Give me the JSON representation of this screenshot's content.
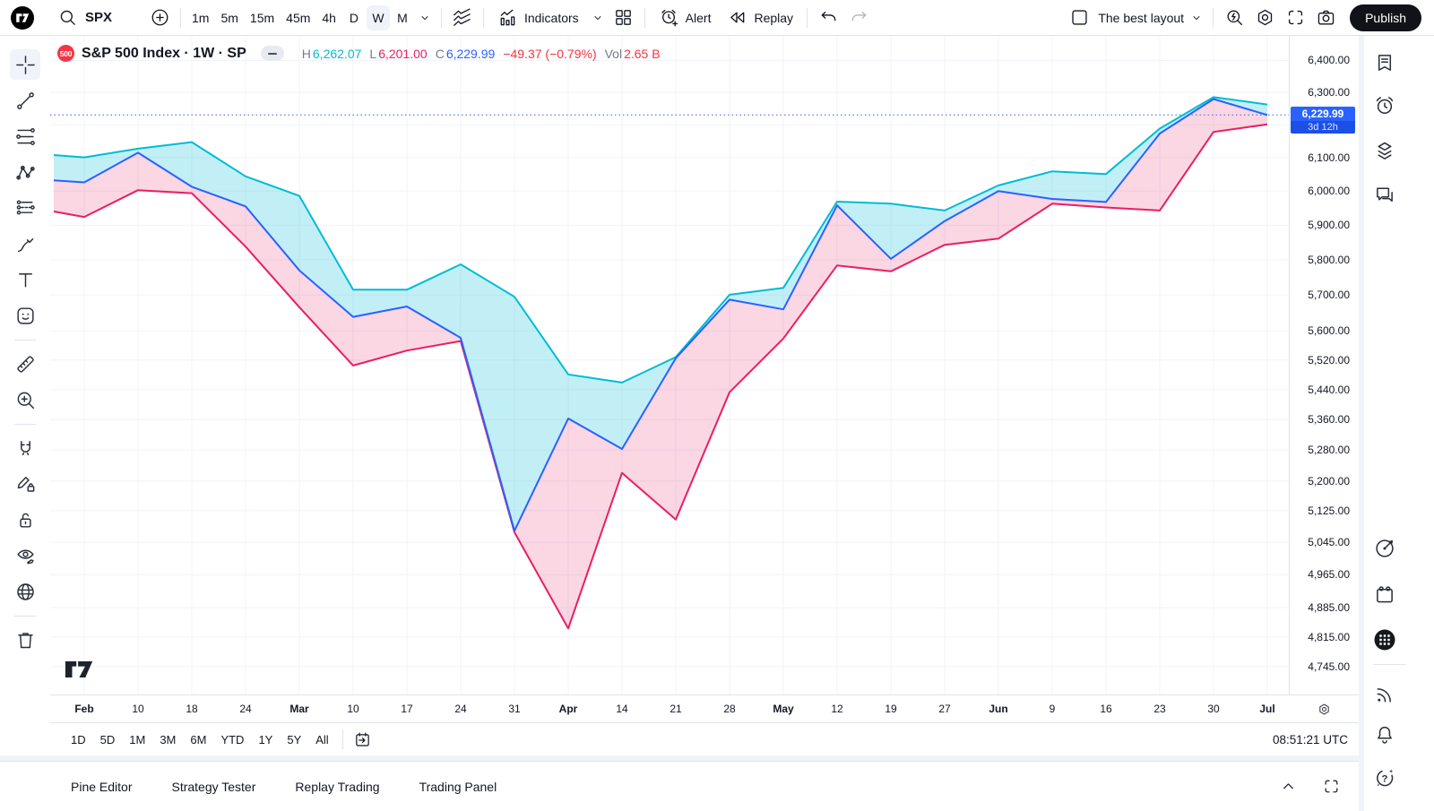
{
  "toolbar": {
    "symbol": "SPX",
    "intervals": [
      "1m",
      "5m",
      "15m",
      "45m",
      "4h",
      "D",
      "W",
      "M"
    ],
    "active_interval": "W",
    "indicators_label": "Indicators",
    "alert_label": "Alert",
    "replay_label": "Replay",
    "layout_name": "The best layout",
    "publish_label": "Publish"
  },
  "legend": {
    "badge": "500",
    "title": "S&P 500 Index · 1W · SP",
    "h_label": "H",
    "h_value": "6,262.07",
    "l_label": "L",
    "l_value": "6,201.00",
    "c_label": "C",
    "c_value": "6,229.99",
    "change": "−49.37 (−0.79%)",
    "vol_label": "Vol",
    "vol_value": "2.65 B"
  },
  "price_axis": {
    "ticks": [
      6400,
      6300,
      6200,
      6100,
      6000,
      5900,
      5800,
      5700,
      5600,
      5520,
      5440,
      5360,
      5280,
      5200,
      5125,
      5045,
      4965,
      4885,
      4815,
      4745
    ],
    "tag_price": "6,229.99",
    "tag_countdown": "3d 12h"
  },
  "range_bar": {
    "ranges": [
      "1D",
      "5D",
      "1M",
      "3M",
      "6M",
      "YTD",
      "1Y",
      "5Y",
      "All"
    ],
    "clock": "08:51:21 UTC"
  },
  "bottom_tabs": [
    "Pine Editor",
    "Strategy Tester",
    "Replay Trading",
    "Trading Panel"
  ],
  "left_toolbar": [
    "crosshair",
    "trend-line",
    "fib-retracement",
    "xabcd-pattern",
    "forecast",
    "brush",
    "text",
    "emoji",
    "divider",
    "ruler",
    "zoom-in",
    "divider",
    "magnet",
    "drawing-lock",
    "lock-all",
    "hide-drawings",
    "sync-globe",
    "divider",
    "trash"
  ],
  "right_sidebar": [
    "watchlist",
    "alerts",
    "object-tree",
    "chat",
    "screener",
    "calendar",
    "apps-grid",
    "divider",
    "news",
    "notifications",
    "help"
  ],
  "chart_data": {
    "type": "line",
    "subtype": "hlc-area-weekly",
    "x_labels": [
      "Feb",
      "10",
      "18",
      "24",
      "Mar",
      "10",
      "17",
      "24",
      "31",
      "Apr",
      "14",
      "21",
      "28",
      "May",
      "12",
      "19",
      "27",
      "Jun",
      "9",
      "16",
      "23",
      "30",
      "Jul"
    ],
    "series": [
      {
        "name": "High",
        "color": "#00BCD4",
        "values": [
          6101,
          6127,
          6147,
          6044,
          5986,
          5715,
          5715,
          5787,
          5695,
          5481,
          5459,
          5528,
          5701,
          5720,
          5969,
          5963,
          5943,
          6017,
          6059,
          6051,
          6188,
          6285,
          6262.07
        ]
      },
      {
        "name": "Close",
        "color": "#2962FF",
        "values": [
          6026,
          6115,
          6013,
          5955,
          5770,
          5639,
          5668,
          5581,
          5074,
          5363,
          5283,
          5525,
          5687,
          5660,
          5958,
          5803,
          5912,
          6000,
          5977,
          5968,
          6173,
          6279,
          6229.99
        ]
      },
      {
        "name": "Low",
        "color": "#E91E63",
        "values": [
          5924,
          6003,
          5994,
          5838,
          5666,
          5505,
          5546,
          5572,
          5070,
          4835,
          5221,
          5102,
          5433,
          5579,
          5784,
          5767,
          5843,
          5861,
          5963,
          5952,
          5943,
          6178,
          6201
        ]
      }
    ],
    "left_edge": {
      "high": 6108,
      "close": 6032,
      "low": 5940
    },
    "fills": {
      "high_close": "rgba(0,188,212,0.24)",
      "close_low": "rgba(233,30,99,0.18)"
    },
    "y_scale": "log",
    "ylim": [
      4680,
      6478
    ],
    "current_price": 6229.99,
    "grid": true,
    "grid_color": "#F0F3FA"
  }
}
